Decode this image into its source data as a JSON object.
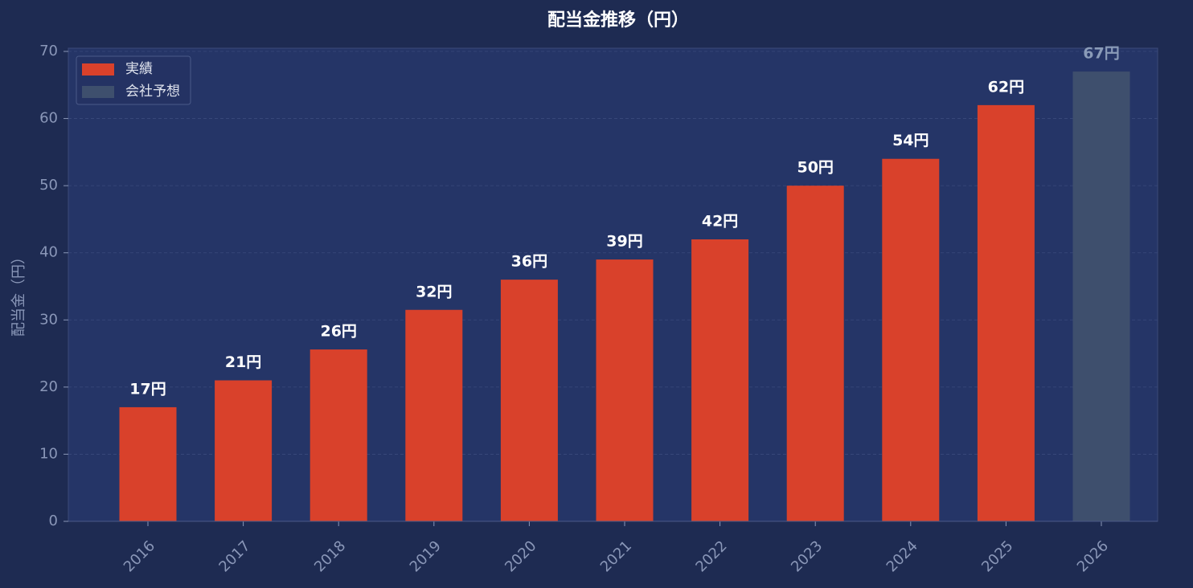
{
  "chart_data": {
    "type": "bar",
    "title": "配当金推移（円）",
    "y_label": "配当金（円）",
    "categories": [
      "2016",
      "2017",
      "2018",
      "2019",
      "2020",
      "2021",
      "2022",
      "2023",
      "2024",
      "2025",
      "2026"
    ],
    "series": [
      {
        "name": "実績",
        "color": "#d9412b",
        "values": [
          17,
          21,
          25.6,
          31.5,
          36,
          39,
          42,
          50,
          54,
          62,
          null
        ],
        "value_labels": [
          "17円",
          "21円",
          "26円",
          "32円",
          "36円",
          "39円",
          "42円",
          "50円",
          "54円",
          "62円",
          null
        ]
      },
      {
        "name": "会社予想",
        "color": "#3e4f6d",
        "values": [
          null,
          null,
          null,
          null,
          null,
          null,
          null,
          null,
          null,
          null,
          67
        ],
        "value_labels": [
          null,
          null,
          null,
          null,
          null,
          null,
          null,
          null,
          null,
          null,
          "67円"
        ]
      }
    ],
    "ylim": [
      0,
      70
    ],
    "yticks": [
      0,
      10,
      20,
      30,
      40,
      50,
      60,
      70
    ],
    "grid": true,
    "legend": "upper left"
  }
}
